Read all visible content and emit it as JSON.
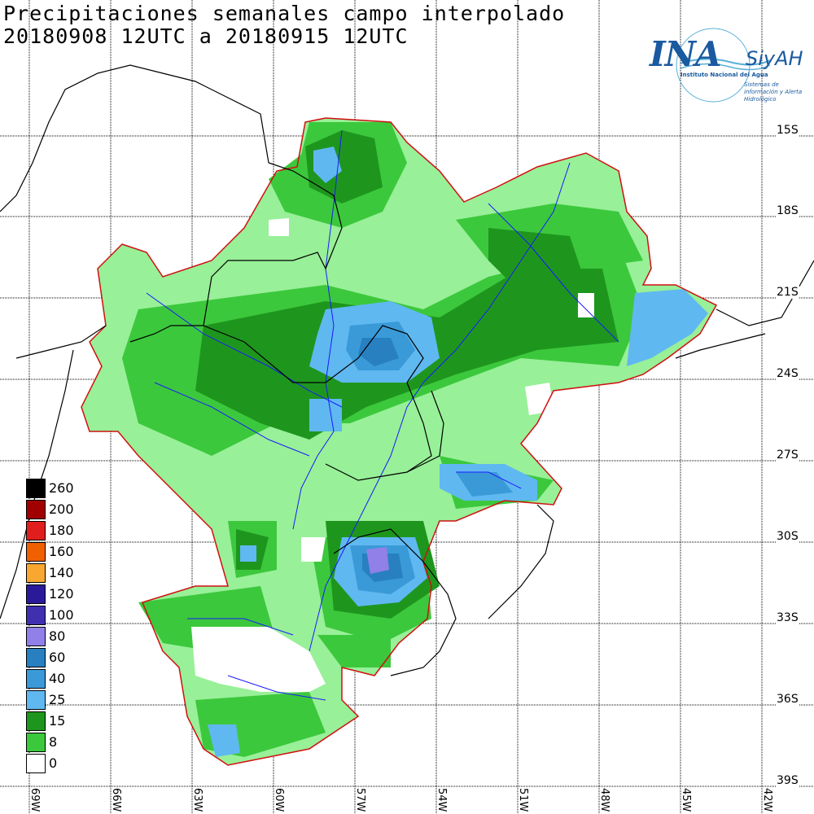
{
  "title": {
    "line1": "Precipitaciones semanales campo interpolado",
    "line2": "20180908 12UTC a 20180915 12UTC"
  },
  "logo": {
    "ina": "INA",
    "siyah": "SiyAH",
    "sub1": "Instituto Nacional del Agua",
    "sub2": "Sistemas de información y Alerta Hidrológico"
  },
  "lat_labels": [
    "15S",
    "18S",
    "21S",
    "24S",
    "27S",
    "30S",
    "33S",
    "36S",
    "39S"
  ],
  "lon_labels": [
    "69W",
    "66W",
    "63W",
    "60W",
    "57W",
    "54W",
    "51W",
    "48W",
    "45W",
    "42W"
  ],
  "legend": [
    {
      "label": "260",
      "color": "#000000"
    },
    {
      "label": "200",
      "color": "#a00000"
    },
    {
      "label": "180",
      "color": "#e01e1e"
    },
    {
      "label": "160",
      "color": "#f06000"
    },
    {
      "label": "140",
      "color": "#f8a830"
    },
    {
      "label": "120",
      "color": "#2a1a9a"
    },
    {
      "label": "100",
      "color": "#4030b0"
    },
    {
      "label": "80",
      "color": "#9080e8"
    },
    {
      "label": "60",
      "color": "#2880c0"
    },
    {
      "label": "40",
      "color": "#3a9ad8"
    },
    {
      "label": "25",
      "color": "#60b8f0"
    },
    {
      "label": "15",
      "color": "#1e961e"
    },
    {
      "label": "8",
      "color": "#3cc83c"
    },
    {
      "label": "0",
      "color": "#ffffff"
    }
  ],
  "colors": {
    "basin_outline": "#d01010",
    "rivers": "#1a1aff",
    "borders": "#000000",
    "light_green": "#98f098"
  }
}
